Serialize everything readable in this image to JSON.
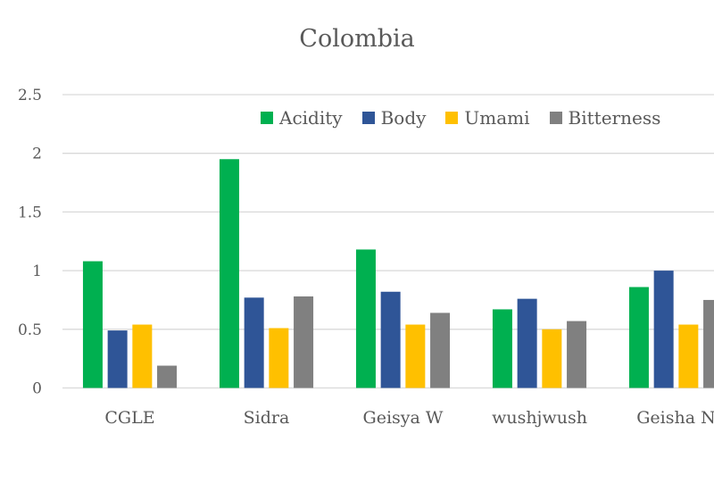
{
  "chart_data": {
    "type": "bar",
    "title": "Colombia",
    "categories": [
      "CGLE",
      "Sidra",
      "Geisya W",
      "wushjwush",
      "Geisha N"
    ],
    "series": [
      {
        "name": "Acidity",
        "color": "#00B050",
        "values": [
          1.08,
          1.95,
          1.18,
          0.67,
          0.86
        ]
      },
      {
        "name": "Body",
        "color": "#2F5597",
        "values": [
          0.49,
          0.77,
          0.82,
          0.76,
          1.0
        ]
      },
      {
        "name": "Umami",
        "color": "#FFC000",
        "values": [
          0.54,
          0.51,
          0.54,
          0.5,
          0.54
        ]
      },
      {
        "name": "Bitterness",
        "color": "#808080",
        "values": [
          0.19,
          0.78,
          0.64,
          0.57,
          0.75
        ]
      }
    ],
    "yticks": [
      "0",
      "0.5",
      "1",
      "1.5",
      "2",
      "2.5"
    ],
    "ylim": [
      0,
      2.5
    ],
    "grid": true,
    "legend_position": "top-right"
  }
}
